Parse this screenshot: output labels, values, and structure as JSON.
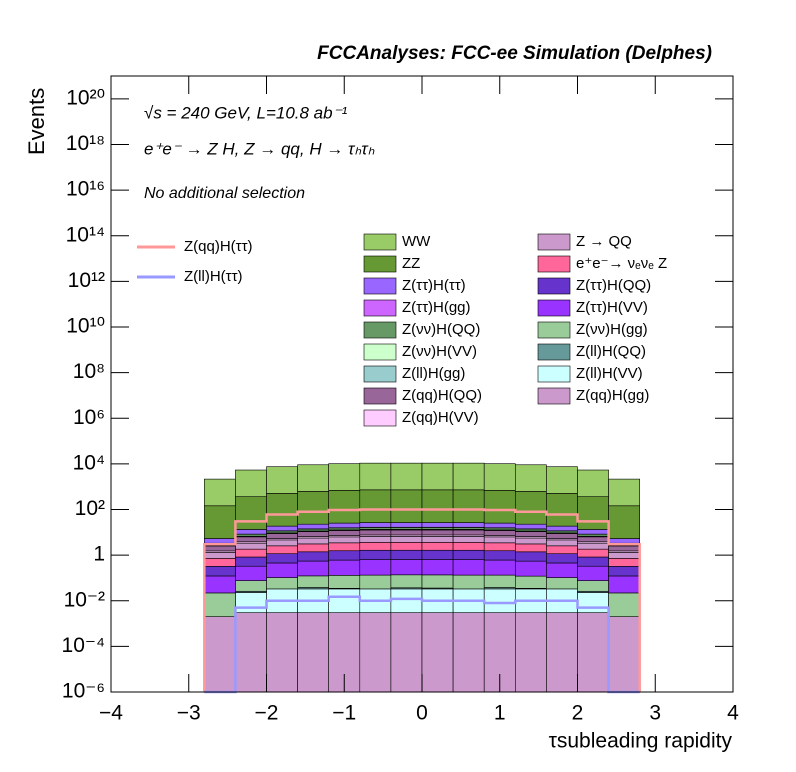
{
  "chart_data": {
    "type": "stacked_histogram",
    "title": "FCCAnalyses: FCC-ee Simulation (Delphes)",
    "annotations": [
      "√s = 240 GeV, L=10.8 ab⁻¹",
      "e⁺e⁻ → Z H, Z → qq, H → τₕτₕ",
      "No additional selection"
    ],
    "xlabel": "τsubleading rapidity",
    "ylabel": "Events",
    "log_y": true,
    "xlim": [
      -4,
      4
    ],
    "ylim": [
      1e-06,
      1e+21
    ],
    "xticks": [
      -4,
      -3,
      -2,
      -1,
      0,
      1,
      2,
      3,
      4
    ],
    "yticks": [
      {
        "value": 1e-06,
        "label": "10⁻⁶"
      },
      {
        "value": 0.0001,
        "label": "10⁻⁴"
      },
      {
        "value": 0.01,
        "label": "10⁻²"
      },
      1,
      {
        "value": 100,
        "label": "10²"
      },
      {
        "value": 10000.0,
        "label": "10⁴"
      },
      {
        "value": 1000000.0,
        "label": "10⁶"
      },
      {
        "value": 100000000.0,
        "label": "10⁸"
      },
      {
        "value": 10000000000.0,
        "label": "10¹⁰"
      },
      {
        "value": 1000000000000.0,
        "label": "10¹²"
      },
      {
        "value": 100000000000000.0,
        "label": "10¹⁴"
      },
      {
        "value": 1e+16,
        "label": "10¹⁶"
      },
      {
        "value": 1e+18,
        "label": "10¹⁸"
      },
      {
        "value": 1e+20,
        "label": "10²⁰"
      }
    ],
    "bins": [
      -2.8,
      -2.4,
      -2,
      -1.6,
      -1.2,
      -0.8,
      -0.4,
      0,
      0.4,
      0.8,
      1.2,
      1.6,
      2,
      2.4,
      2.8
    ],
    "series": [
      {
        "name": "WW",
        "color": "#99cc66",
        "values": [
          2000,
          5000,
          7000,
          8500,
          9500,
          10000,
          10000,
          10000,
          10000,
          9500,
          8500,
          7000,
          5000,
          2000
        ]
      },
      {
        "name": "ZZ",
        "color": "#669933",
        "values": [
          140,
          350,
          490,
          595,
          665,
          700,
          700,
          700,
          700,
          665,
          595,
          490,
          350,
          140
        ]
      },
      {
        "name": "Z(ττ)H(ττ)",
        "color": "#9966ff",
        "values": [
          2,
          5,
          7,
          8.5,
          9.5,
          10,
          10,
          10,
          10,
          9.5,
          8.5,
          7,
          5,
          2
        ]
      },
      {
        "name": "Z(ττ)H(gg)",
        "color": "#cc66ff",
        "values": [
          0.04,
          0.1,
          0.14,
          0.17,
          0.19,
          0.2,
          0.2,
          0.2,
          0.2,
          0.19,
          0.17,
          0.14,
          0.1,
          0.04
        ]
      },
      {
        "name": "Z(νν)H(QQ)",
        "color": "#669966",
        "values": [
          0.6,
          1.5,
          2.1,
          2.55,
          2.85,
          3,
          3,
          3,
          3,
          2.85,
          2.55,
          2.1,
          1.5,
          0.6
        ]
      },
      {
        "name": "Z(νν)H(VV)",
        "color": "#ccffcc",
        "values": [
          0.1,
          0.25,
          0.35,
          0.425,
          0.475,
          0.5,
          0.5,
          0.5,
          0.5,
          0.475,
          0.425,
          0.35,
          0.25,
          0.1
        ]
      },
      {
        "name": "Z(ll)H(gg)",
        "color": "#99cccc",
        "values": [
          0.06,
          0.15,
          0.21,
          0.255,
          0.285,
          0.3,
          0.3,
          0.3,
          0.3,
          0.285,
          0.255,
          0.21,
          0.15,
          0.06
        ]
      },
      {
        "name": "Z(qq)H(QQ)",
        "color": "#996699",
        "values": [
          1,
          2.5,
          3.5,
          4.25,
          4.75,
          5,
          5,
          5,
          5,
          4.75,
          4.25,
          3.5,
          2.5,
          1
        ]
      },
      {
        "name": "Z(qq)H(VV)",
        "color": "#ffccff",
        "values": [
          0.2,
          0.5,
          0.7,
          0.85,
          0.95,
          1,
          1,
          1,
          1,
          0.95,
          0.85,
          0.7,
          0.5,
          0.2
        ]
      },
      {
        "name": "Z → QQ",
        "color": "#cc99cc",
        "values": [
          0.6,
          1.5,
          2.1,
          2.55,
          2.85,
          3,
          3,
          3,
          3,
          2.85,
          2.55,
          2.1,
          1.5,
          0.6
        ]
      },
      {
        "name": "e⁺e⁻→ νₑνₑ Z",
        "color": "#ff6699",
        "values": [
          0.4,
          1,
          1.4,
          1.7,
          1.9,
          2,
          2,
          2,
          2,
          1.9,
          1.7,
          1.4,
          1,
          0.4
        ]
      },
      {
        "name": "Z(ττ)H(QQ)",
        "color": "#6633cc",
        "values": [
          0.2,
          0.5,
          0.7,
          0.85,
          0.95,
          1,
          1,
          1,
          1,
          0.95,
          0.85,
          0.7,
          0.5,
          0.2
        ]
      },
      {
        "name": "Z(ττ)H(VV)",
        "color": "#9933ff",
        "values": [
          0.1,
          0.25,
          0.35,
          0.425,
          0.475,
          0.5,
          0.5,
          0.5,
          0.5,
          0.475,
          0.425,
          0.35,
          0.25,
          0.1
        ]
      },
      {
        "name": "Z(νν)H(gg)",
        "color": "#99cc99",
        "values": [
          0.02,
          0.05,
          0.07,
          0.085,
          0.095,
          0.1,
          0.1,
          0.1,
          0.1,
          0.095,
          0.085,
          0.07,
          0.05,
          0.02
        ]
      },
      {
        "name": "Z(ll)H(QQ)",
        "color": "#669999",
        "values": [
          0,
          0.003,
          0,
          0.005,
          0.002,
          0,
          0.004,
          0.003,
          0,
          0.005,
          0.002,
          0,
          0.003,
          0
        ]
      },
      {
        "name": "Z(ll)H(VV)",
        "color": "#ccffff",
        "values": [
          0,
          0.02,
          0.03,
          0.03,
          0.03,
          0.03,
          0.03,
          0.03,
          0.03,
          0.03,
          0.03,
          0.03,
          0.02,
          0
        ]
      },
      {
        "name": "Z(qq)H(gg)",
        "color": "#cc99cc",
        "values": [
          0.002,
          0.003,
          0.003,
          0.003,
          0.003,
          0.003,
          0.003,
          0.003,
          0.003,
          0.003,
          0.003,
          0.003,
          0.003,
          0.002
        ]
      }
    ],
    "lines": [
      {
        "name": "Z(qq)H(ττ)",
        "color": "#ff9999",
        "values": [
          3,
          30,
          60,
          80,
          95,
          100,
          100,
          100,
          100,
          95,
          80,
          60,
          30,
          3
        ]
      },
      {
        "name": "Z(ll)H(ττ)",
        "color": "#9999ff",
        "values": [
          0,
          0.005,
          0.01,
          0.01,
          0.015,
          0.01,
          0.012,
          0.01,
          0.01,
          0.008,
          0.01,
          0.01,
          0.005,
          0
        ]
      }
    ]
  }
}
